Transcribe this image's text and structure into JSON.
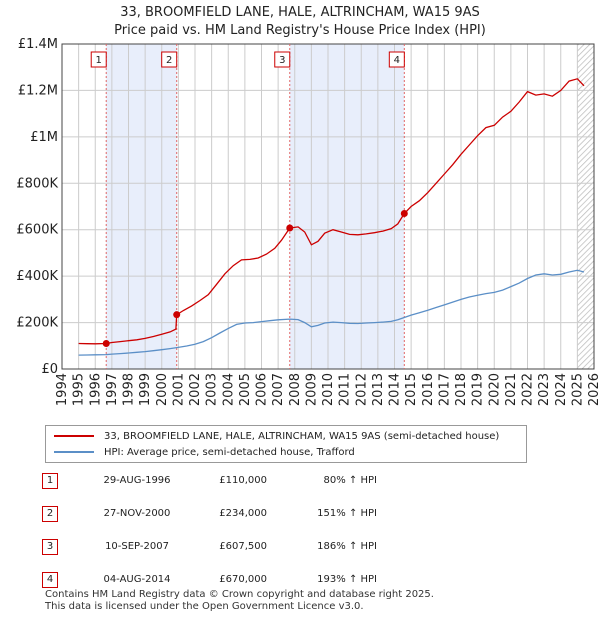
{
  "title_line1": "33, BROOMFIELD LANE, HALE, ALTRINCHAM, WA15 9AS",
  "title_line2": "Price paid vs. HM Land Registry's House Price Index (HPI)",
  "colors": {
    "property": "#cc0000",
    "hpi": "#5b8fc7",
    "shade": "#e8eefb",
    "grid": "#cccccc",
    "marker_line": "#e06666"
  },
  "chart_data": {
    "type": "line",
    "title": "Price paid vs. HM Land Registry's House Price Index (HPI)",
    "xlim": [
      1994,
      2026
    ],
    "ylim": [
      0,
      1400000
    ],
    "y_ticks": [
      {
        "value": 0,
        "label": "£0"
      },
      {
        "value": 200000,
        "label": "£200K"
      },
      {
        "value": 400000,
        "label": "£400K"
      },
      {
        "value": 600000,
        "label": "£600K"
      },
      {
        "value": 800000,
        "label": "£800K"
      },
      {
        "value": 1000000,
        "label": "£1M"
      },
      {
        "value": 1200000,
        "label": "£1.2M"
      },
      {
        "value": 1400000,
        "label": "£1.4M"
      }
    ],
    "x_ticks": [
      1994,
      1995,
      1996,
      1997,
      1998,
      1999,
      2000,
      2001,
      2002,
      2003,
      2004,
      2005,
      2006,
      2007,
      2008,
      2009,
      2010,
      2011,
      2012,
      2013,
      2014,
      2015,
      2016,
      2017,
      2018,
      2019,
      2020,
      2021,
      2022,
      2023,
      2024,
      2025,
      2026
    ],
    "shaded_spans": [
      [
        1996.66,
        2000.9
      ],
      [
        2007.7,
        2014.59
      ]
    ],
    "hatched_from": 2025.0,
    "series": [
      {
        "name": "33, BROOMFIELD LANE, HALE, ALTRINCHAM, WA15 9AS (semi-detached house)",
        "color": "#cc0000",
        "points": [
          [
            1995.0,
            110000
          ],
          [
            1995.5,
            109000
          ],
          [
            1996.0,
            108500
          ],
          [
            1996.66,
            110000
          ],
          [
            1997.0,
            114000
          ],
          [
            1997.5,
            118000
          ],
          [
            1998.0,
            122000
          ],
          [
            1998.5,
            126000
          ],
          [
            1999.0,
            132000
          ],
          [
            1999.5,
            140000
          ],
          [
            2000.0,
            150000
          ],
          [
            2000.5,
            160000
          ],
          [
            2000.85,
            172000
          ],
          [
            2000.9,
            234000
          ],
          [
            2001.3,
            252000
          ],
          [
            2001.8,
            272000
          ],
          [
            2002.3,
            295000
          ],
          [
            2002.8,
            320000
          ],
          [
            2003.3,
            365000
          ],
          [
            2003.8,
            410000
          ],
          [
            2004.3,
            445000
          ],
          [
            2004.8,
            470000
          ],
          [
            2005.3,
            472000
          ],
          [
            2005.8,
            478000
          ],
          [
            2006.3,
            495000
          ],
          [
            2006.8,
            520000
          ],
          [
            2007.2,
            555000
          ],
          [
            2007.7,
            607500
          ],
          [
            2008.2,
            612000
          ],
          [
            2008.6,
            590000
          ],
          [
            2009.0,
            535000
          ],
          [
            2009.4,
            550000
          ],
          [
            2009.8,
            585000
          ],
          [
            2010.3,
            600000
          ],
          [
            2010.8,
            590000
          ],
          [
            2011.3,
            580000
          ],
          [
            2011.8,
            578000
          ],
          [
            2012.3,
            582000
          ],
          [
            2012.8,
            587000
          ],
          [
            2013.3,
            594000
          ],
          [
            2013.8,
            605000
          ],
          [
            2014.2,
            625000
          ],
          [
            2014.59,
            670000
          ],
          [
            2015.0,
            700000
          ],
          [
            2015.5,
            725000
          ],
          [
            2016.0,
            760000
          ],
          [
            2016.5,
            800000
          ],
          [
            2017.0,
            840000
          ],
          [
            2017.5,
            880000
          ],
          [
            2018.0,
            925000
          ],
          [
            2018.5,
            965000
          ],
          [
            2019.0,
            1005000
          ],
          [
            2019.5,
            1040000
          ],
          [
            2020.0,
            1050000
          ],
          [
            2020.5,
            1085000
          ],
          [
            2021.0,
            1110000
          ],
          [
            2021.5,
            1150000
          ],
          [
            2022.0,
            1195000
          ],
          [
            2022.5,
            1180000
          ],
          [
            2023.0,
            1185000
          ],
          [
            2023.5,
            1175000
          ],
          [
            2024.0,
            1200000
          ],
          [
            2024.5,
            1240000
          ],
          [
            2025.0,
            1250000
          ],
          [
            2025.4,
            1220000
          ]
        ]
      },
      {
        "name": "HPI: Average price, semi-detached house, Trafford",
        "color": "#5b8fc7",
        "points": [
          [
            1995.0,
            60000
          ],
          [
            1995.5,
            60500
          ],
          [
            1996.0,
            61000
          ],
          [
            1996.66,
            62000
          ],
          [
            1997.0,
            64000
          ],
          [
            1997.5,
            66500
          ],
          [
            1998.0,
            69000
          ],
          [
            1998.5,
            72000
          ],
          [
            1999.0,
            75000
          ],
          [
            1999.5,
            79000
          ],
          [
            2000.0,
            83000
          ],
          [
            2000.5,
            88000
          ],
          [
            2000.9,
            92000
          ],
          [
            2001.5,
            99000
          ],
          [
            2002.0,
            107000
          ],
          [
            2002.5,
            118000
          ],
          [
            2003.0,
            135000
          ],
          [
            2003.5,
            155000
          ],
          [
            2004.0,
            175000
          ],
          [
            2004.5,
            192000
          ],
          [
            2005.0,
            198000
          ],
          [
            2005.5,
            200000
          ],
          [
            2006.0,
            204000
          ],
          [
            2006.5,
            208000
          ],
          [
            2007.0,
            212000
          ],
          [
            2007.7,
            215000
          ],
          [
            2008.2,
            213000
          ],
          [
            2008.6,
            200000
          ],
          [
            2009.0,
            182000
          ],
          [
            2009.4,
            188000
          ],
          [
            2009.8,
            198000
          ],
          [
            2010.3,
            202000
          ],
          [
            2010.8,
            200000
          ],
          [
            2011.3,
            197000
          ],
          [
            2011.8,
            196000
          ],
          [
            2012.3,
            198000
          ],
          [
            2012.8,
            200000
          ],
          [
            2013.3,
            202000
          ],
          [
            2013.8,
            205000
          ],
          [
            2014.2,
            212000
          ],
          [
            2014.59,
            222000
          ],
          [
            2015.0,
            232000
          ],
          [
            2015.5,
            242000
          ],
          [
            2016.0,
            253000
          ],
          [
            2016.5,
            265000
          ],
          [
            2017.0,
            276000
          ],
          [
            2017.5,
            288000
          ],
          [
            2018.0,
            300000
          ],
          [
            2018.5,
            310000
          ],
          [
            2019.0,
            318000
          ],
          [
            2019.5,
            325000
          ],
          [
            2020.0,
            330000
          ],
          [
            2020.5,
            340000
          ],
          [
            2021.0,
            355000
          ],
          [
            2021.5,
            370000
          ],
          [
            2022.0,
            390000
          ],
          [
            2022.5,
            405000
          ],
          [
            2023.0,
            410000
          ],
          [
            2023.5,
            405000
          ],
          [
            2024.0,
            408000
          ],
          [
            2024.5,
            418000
          ],
          [
            2025.0,
            425000
          ],
          [
            2025.4,
            418000
          ]
        ]
      }
    ],
    "markers": [
      {
        "num": "1",
        "x": 1996.66,
        "y": 110000
      },
      {
        "num": "2",
        "x": 2000.9,
        "y": 234000
      },
      {
        "num": "3",
        "x": 2007.7,
        "y": 607500
      },
      {
        "num": "4",
        "x": 2014.59,
        "y": 670000
      }
    ]
  },
  "legend": {
    "property_label": "33, BROOMFIELD LANE, HALE, ALTRINCHAM, WA15 9AS (semi-detached house)",
    "hpi_label": "HPI: Average price, semi-detached house, Trafford"
  },
  "sales": [
    {
      "num": "1",
      "date": "29-AUG-1996",
      "price": "£110,000",
      "hpi": "80% ↑ HPI"
    },
    {
      "num": "2",
      "date": "27-NOV-2000",
      "price": "£234,000",
      "hpi": "151% ↑ HPI"
    },
    {
      "num": "3",
      "date": "10-SEP-2007",
      "price": "£607,500",
      "hpi": "186% ↑ HPI"
    },
    {
      "num": "4",
      "date": "04-AUG-2014",
      "price": "£670,000",
      "hpi": "193% ↑ HPI"
    }
  ],
  "footer": {
    "line1": "Contains HM Land Registry data © Crown copyright and database right 2025.",
    "line2": "This data is licensed under the Open Government Licence v3.0."
  }
}
